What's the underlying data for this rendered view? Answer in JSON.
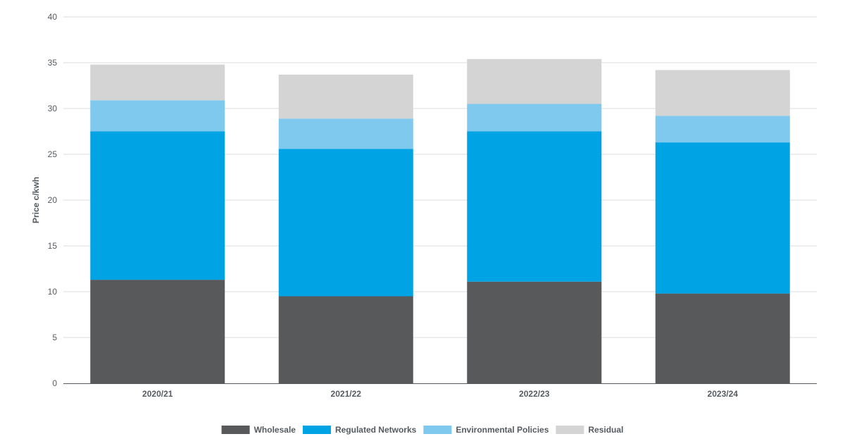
{
  "chart_data": {
    "type": "bar",
    "stacked": true,
    "title": "",
    "xlabel": "",
    "ylabel": "Price c/kwh",
    "ylim": [
      0,
      40
    ],
    "yticks": [
      0,
      5,
      10,
      15,
      20,
      25,
      30,
      35,
      40
    ],
    "grid": true,
    "legend_position": "bottom",
    "categories": [
      "2020/21",
      "2021/22",
      "2022/23",
      "2023/24"
    ],
    "series": [
      {
        "name": "Wholesale",
        "color": "#58595b",
        "values": [
          11.3,
          9.5,
          11.1,
          9.8
        ]
      },
      {
        "name": "Regulated Networks",
        "color": "#00a3e4",
        "values": [
          16.2,
          16.1,
          16.4,
          16.5
        ]
      },
      {
        "name": "Environmental Policies",
        "color": "#7fc8ee",
        "values": [
          3.4,
          3.3,
          3.0,
          2.9
        ]
      },
      {
        "name": "Residual",
        "color": "#d4d4d4",
        "values": [
          3.9,
          4.8,
          4.9,
          5.0
        ]
      }
    ]
  }
}
